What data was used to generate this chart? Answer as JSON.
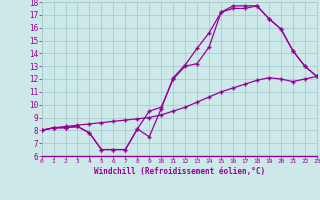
{
  "xlabel": "Windchill (Refroidissement éolien,°C)",
  "bg_color": "#cce8e8",
  "grid_color": "#aacccc",
  "line_color": "#990099",
  "spine_color": "#aaaaaa",
  "x_min": 0,
  "x_max": 23,
  "y_min": 6,
  "y_max": 18,
  "yticks": [
    6,
    7,
    8,
    9,
    10,
    11,
    12,
    13,
    14,
    15,
    16,
    17,
    18
  ],
  "xticks": [
    0,
    1,
    2,
    3,
    4,
    5,
    6,
    7,
    8,
    9,
    10,
    11,
    12,
    13,
    14,
    15,
    16,
    17,
    18,
    19,
    20,
    21,
    22,
    23
  ],
  "line1_x": [
    0,
    1,
    2,
    3,
    4,
    5,
    6,
    7,
    8,
    9,
    10,
    11,
    12,
    13,
    14,
    15,
    16,
    17,
    18,
    19,
    20,
    21,
    22,
    23
  ],
  "line1_y": [
    8.0,
    8.2,
    8.2,
    8.3,
    7.8,
    6.5,
    6.5,
    6.5,
    8.1,
    7.5,
    9.7,
    12.1,
    13.1,
    14.4,
    15.6,
    17.2,
    17.5,
    17.5,
    17.7,
    16.7,
    15.9,
    14.2,
    13.0,
    12.2
  ],
  "line2_x": [
    0,
    1,
    2,
    3,
    4,
    5,
    6,
    7,
    8,
    9,
    10,
    11,
    12,
    13,
    14,
    15,
    16,
    17,
    18,
    19,
    20,
    21,
    22,
    23
  ],
  "line2_y": [
    8.0,
    8.2,
    8.2,
    8.3,
    7.8,
    6.5,
    6.5,
    6.5,
    8.1,
    9.5,
    9.8,
    12.0,
    13.0,
    13.2,
    14.5,
    17.2,
    17.7,
    17.7,
    17.7,
    16.7,
    15.9,
    14.2,
    13.0,
    12.2
  ],
  "line3_x": [
    0,
    1,
    2,
    3,
    4,
    5,
    6,
    7,
    8,
    9,
    10,
    11,
    12,
    13,
    14,
    15,
    16,
    17,
    18,
    19,
    20,
    21,
    22,
    23
  ],
  "line3_y": [
    8.0,
    8.2,
    8.3,
    8.4,
    8.5,
    8.6,
    8.7,
    8.8,
    8.9,
    9.0,
    9.2,
    9.5,
    9.8,
    10.2,
    10.6,
    11.0,
    11.3,
    11.6,
    11.9,
    12.1,
    12.0,
    11.8,
    12.0,
    12.2
  ]
}
